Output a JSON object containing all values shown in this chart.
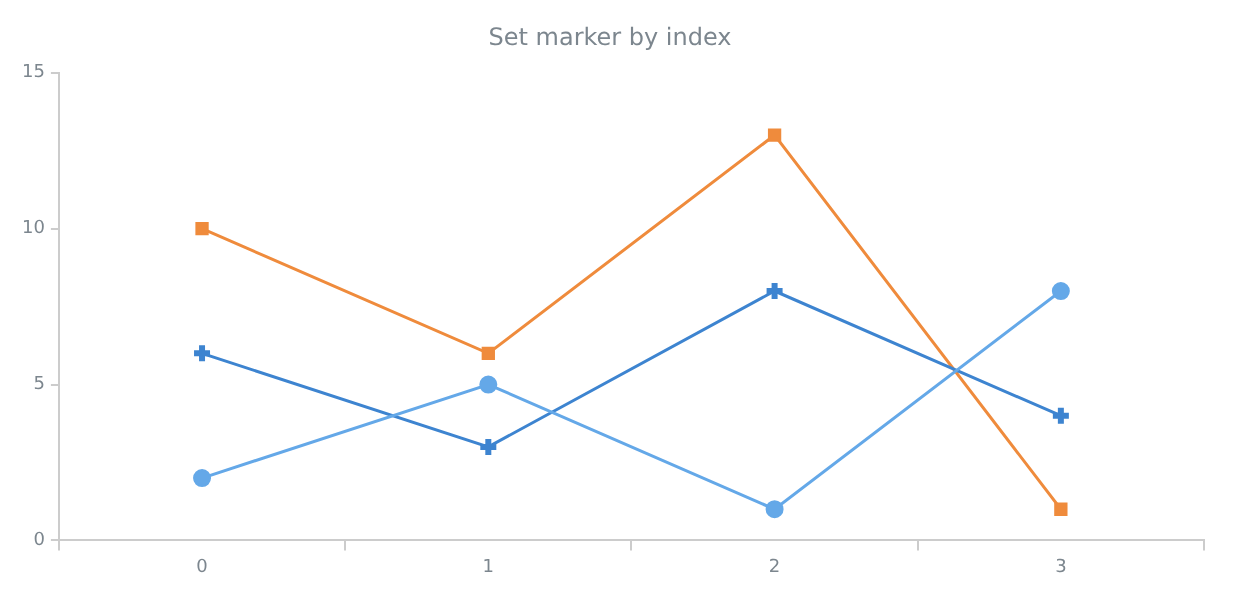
{
  "chart_data": {
    "type": "line",
    "title": "Set marker by index",
    "categories": [
      "0",
      "1",
      "2",
      "3"
    ],
    "series": [
      {
        "color": "#64a8e8",
        "values": [
          2,
          5,
          1,
          8
        ],
        "marker": "circle"
      },
      {
        "color": "#3d84d0",
        "values": [
          6,
          3,
          8,
          4
        ],
        "marker": "cross"
      },
      {
        "color": "#ef8b3c",
        "values": [
          10,
          6,
          13,
          1
        ],
        "marker": "square"
      }
    ],
    "ylim": [
      0,
      15
    ],
    "yticks": [
      0,
      5,
      10,
      15
    ],
    "grid": false,
    "legend": false
  }
}
